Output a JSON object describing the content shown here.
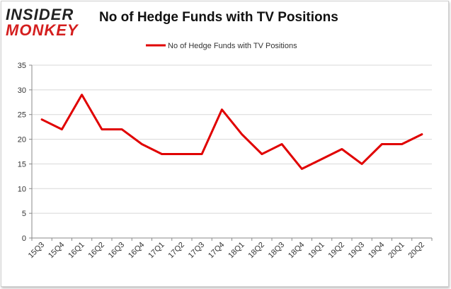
{
  "logo": {
    "top": "INSIDER",
    "bottom": "MONKEY"
  },
  "colors": {
    "line": "#e00000",
    "grid": "#d8d8d8",
    "axis": "#888888",
    "logo_red": "#d41e1e"
  },
  "chart_data": {
    "type": "line",
    "title": "No of Hedge Funds with TV Positions",
    "xlabel": "",
    "ylabel": "",
    "categories": [
      "15Q3",
      "15Q4",
      "16Q1",
      "16Q2",
      "16Q3",
      "16Q4",
      "17Q1",
      "17Q2",
      "17Q3",
      "17Q4",
      "18Q1",
      "18Q2",
      "18Q3",
      "18Q4",
      "19Q1",
      "19Q2",
      "19Q3",
      "19Q4",
      "20Q1",
      "20Q2"
    ],
    "series": [
      {
        "name": "No of Hedge Funds with TV Positions",
        "values": [
          24,
          22,
          29,
          22,
          22,
          19,
          17,
          17,
          17,
          26,
          21,
          17,
          19,
          14,
          16,
          18,
          15,
          19,
          19,
          21
        ]
      }
    ],
    "ylim": [
      0,
      35
    ],
    "yticks": [
      0,
      5,
      10,
      15,
      20,
      25,
      30,
      35
    ],
    "grid": true,
    "legend_position": "top-center"
  }
}
